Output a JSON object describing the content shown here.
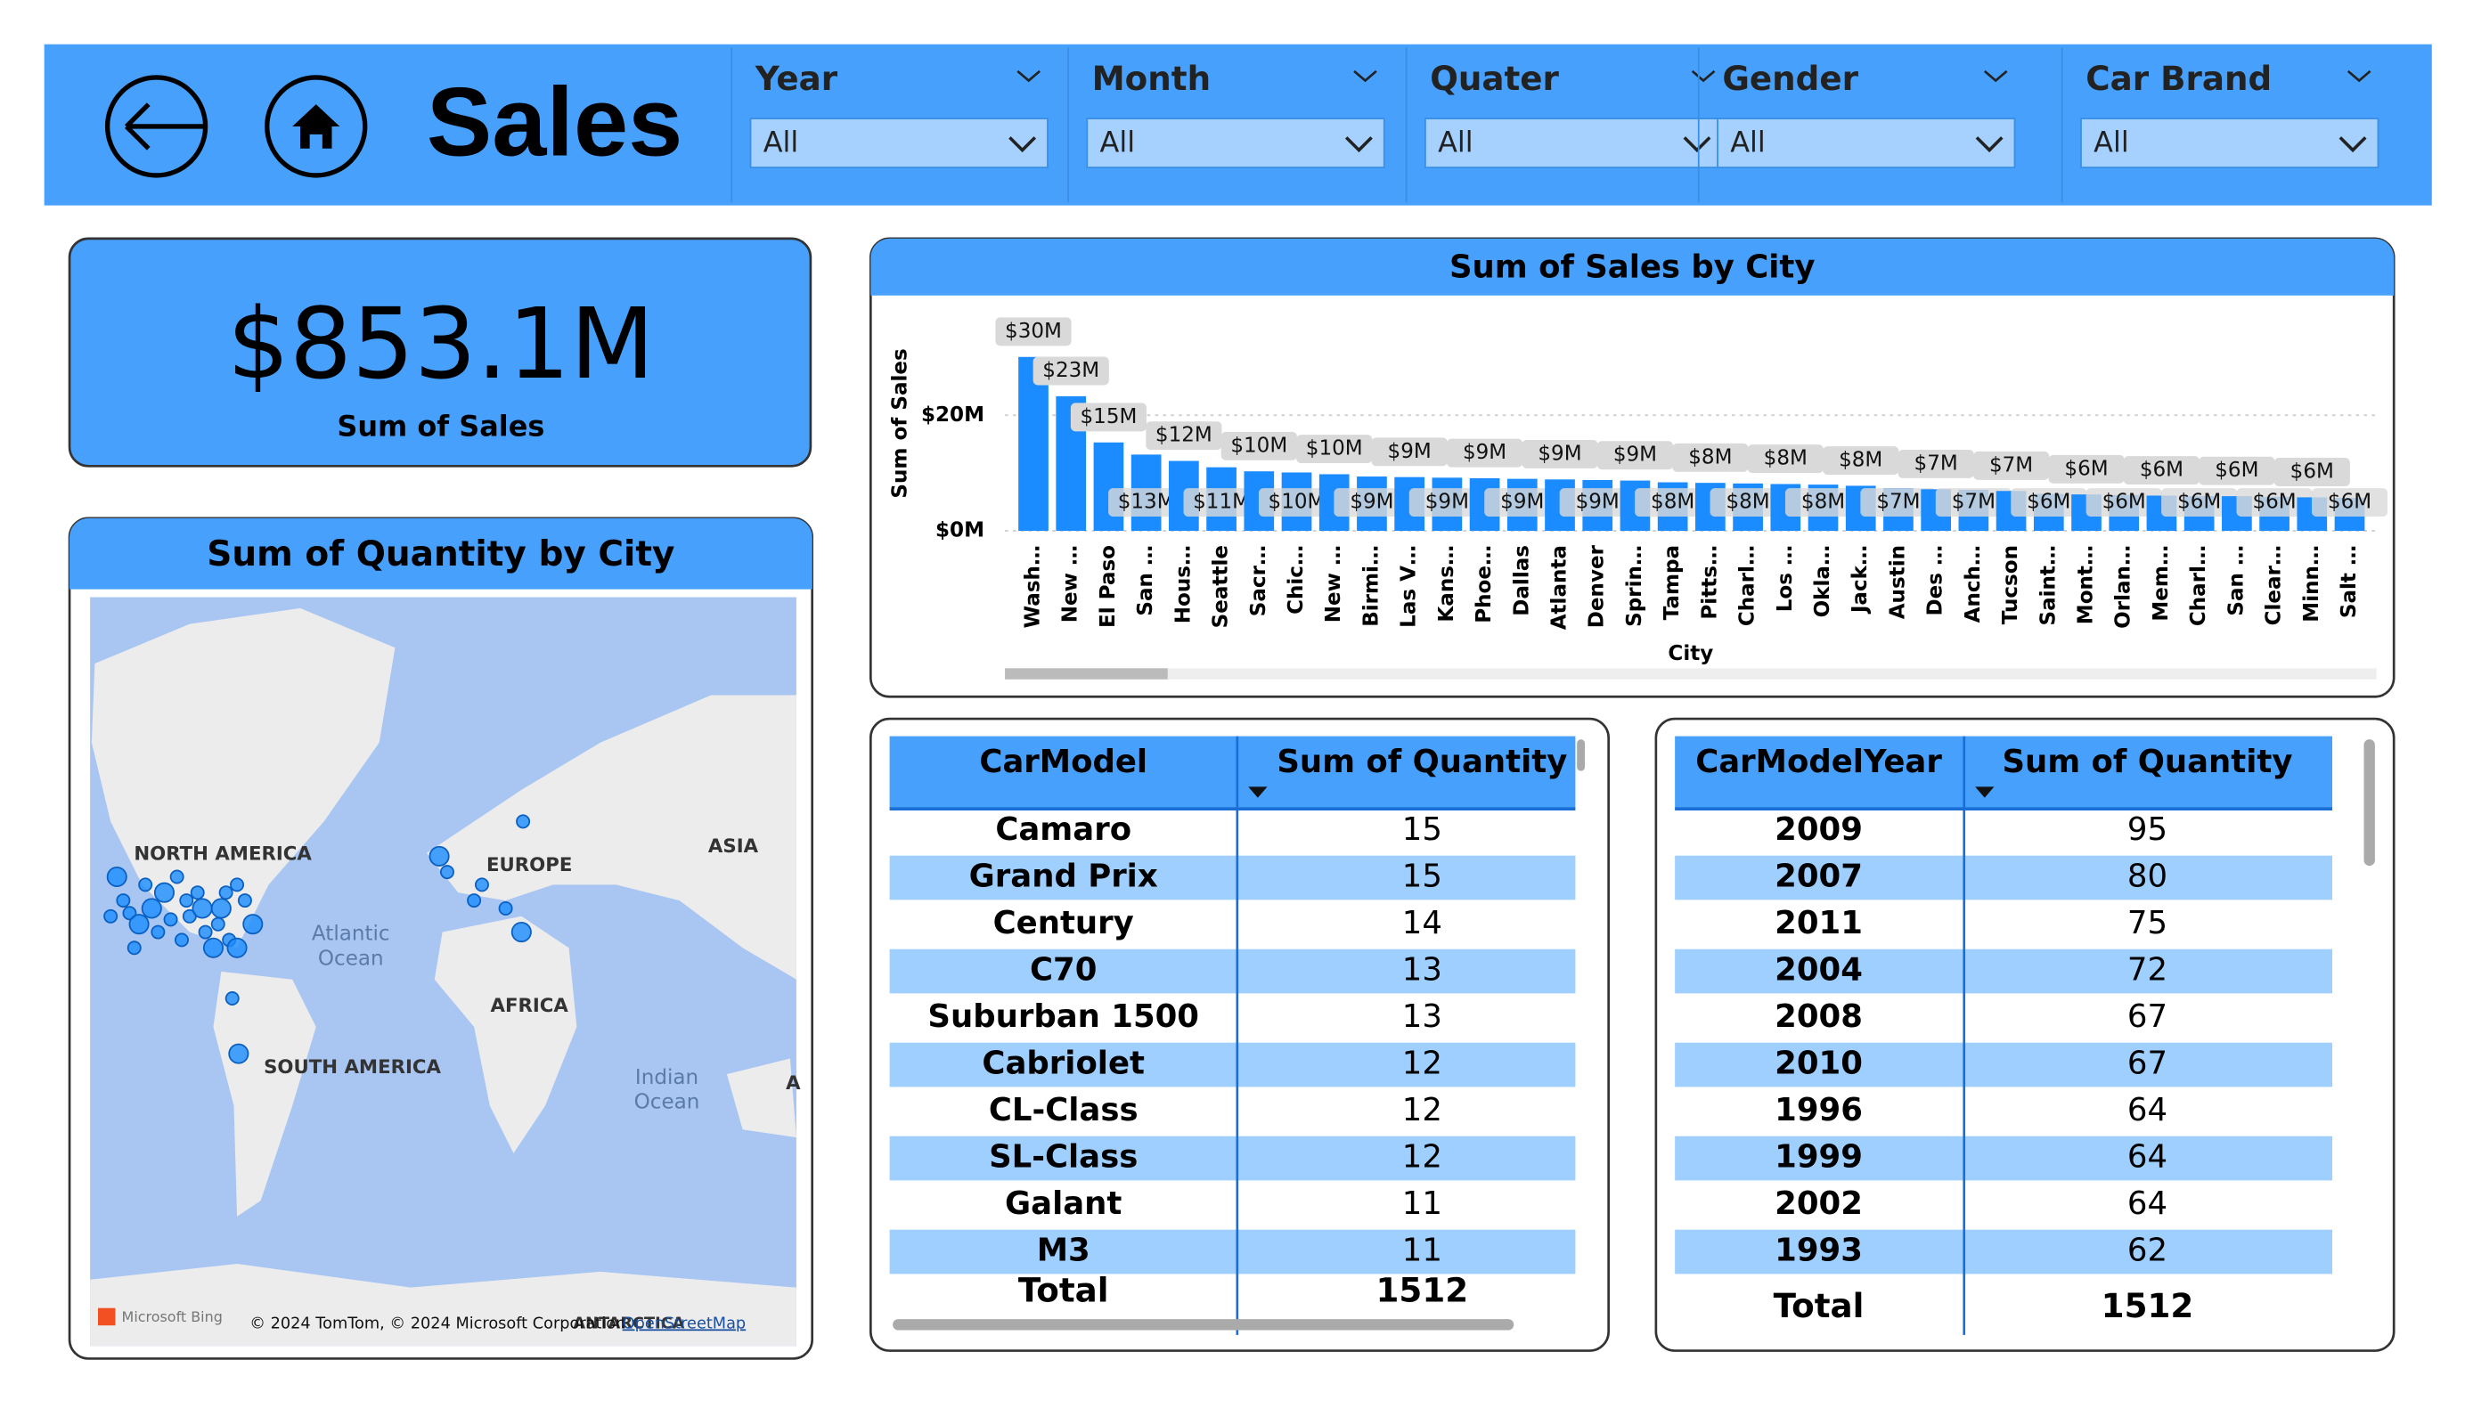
{
  "header": {
    "title": "Sales"
  },
  "filters": [
    {
      "label": "Year",
      "value": "All"
    },
    {
      "label": "Month",
      "value": "All"
    },
    {
      "label": "Quater",
      "value": "All"
    },
    {
      "label": "Gender",
      "value": "All"
    },
    {
      "label": "Car Brand",
      "value": "All"
    }
  ],
  "kpi": {
    "value": "$853.1M",
    "label": "Sum of Sales"
  },
  "map": {
    "title": "Sum of Quantity by City",
    "labels": [
      "NORTH AMERICA",
      "EUROPE",
      "ASIA",
      "Atlantic Ocean",
      "AFRICA",
      "SOUTH AMERICA",
      "Indian Ocean",
      "A",
      "ANTARCTICA"
    ],
    "logo": "Microsoft Bing",
    "attribution": "© 2024 TomTom, © 2024 Microsoft Corporation",
    "link": "OpenStreetMap"
  },
  "chart_data": {
    "type": "bar",
    "title": "Sum of Sales by City",
    "x_label": "City",
    "y_label": "Sum of Sales",
    "color": "#1a8cff",
    "categories": [
      "Wash…",
      "New …",
      "El Paso",
      "San …",
      "Hous…",
      "Seattle",
      "Sacr…",
      "Chic…",
      "New …",
      "Birmi…",
      "Las V…",
      "Kans…",
      "Phoe…",
      "Dallas",
      "Atlanta",
      "Denver",
      "Sprin…",
      "Tampa",
      "Pitts…",
      "Charl…",
      "Los …",
      "Okla…",
      "Jack…",
      "Austin",
      "Des …",
      "Anch…",
      "Tucson",
      "Saint…",
      "Mont…",
      "Orlan…",
      "Mem…",
      "Charl…",
      "San …",
      "Clear…",
      "Minn…",
      "Salt …"
    ],
    "values": [
      30.1,
      23.3,
      15.3,
      13.2,
      12.1,
      11.0,
      10.3,
      10.1,
      9.8,
      9.4,
      9.3,
      9.2,
      9.1,
      9.0,
      8.9,
      8.8,
      8.7,
      8.4,
      8.3,
      8.2,
      8.1,
      8.0,
      7.8,
      7.4,
      7.2,
      7.1,
      6.9,
      6.4,
      6.3,
      6.2,
      6.1,
      6.0,
      6.0,
      5.9,
      5.8,
      5.7
    ],
    "value_labels": [
      "$30M",
      "$23M",
      "$15M",
      "$13M",
      "$12M",
      "$11M",
      "$10M",
      "$10M",
      "$10M",
      "$9M",
      "$9M",
      "$9M",
      "$9M",
      "$9M",
      "$9M",
      "$9M",
      "$9M",
      "$8M",
      "$8M",
      "$8M",
      "$8M",
      "$8M",
      "$8M",
      "$7M",
      "$7M",
      "$7M",
      "$7M",
      "$6M",
      "$6M",
      "$6M",
      "$6M",
      "$6M",
      "$6M",
      "$6M",
      "$6M",
      "$6M"
    ],
    "ylim": [
      0,
      35
    ],
    "yticks": [
      {
        "value": 0,
        "label": "$0M"
      },
      {
        "value": 20,
        "label": "$20M"
      }
    ],
    "grid": true
  },
  "tables": [
    {
      "columns": [
        "CarModel",
        "Sum of Quantity"
      ],
      "rows": [
        [
          "Camaro",
          15
        ],
        [
          "Grand Prix",
          15
        ],
        [
          "Century",
          14
        ],
        [
          "C70",
          13
        ],
        [
          "Suburban 1500",
          13
        ],
        [
          "Cabriolet",
          12
        ],
        [
          "CL-Class",
          12
        ],
        [
          "SL-Class",
          12
        ],
        [
          "Galant",
          11
        ],
        [
          "M3",
          11
        ]
      ],
      "total": [
        "Total",
        1512
      ]
    },
    {
      "columns": [
        "CarModelYear",
        "Sum of Quantity"
      ],
      "rows": [
        [
          "2009",
          95
        ],
        [
          "2007",
          80
        ],
        [
          "2011",
          75
        ],
        [
          "2004",
          72
        ],
        [
          "2008",
          67
        ],
        [
          "2010",
          67
        ],
        [
          "1996",
          64
        ],
        [
          "1999",
          64
        ],
        [
          "2002",
          64
        ],
        [
          "1993",
          62
        ]
      ],
      "total": [
        "Total",
        1512
      ]
    }
  ]
}
